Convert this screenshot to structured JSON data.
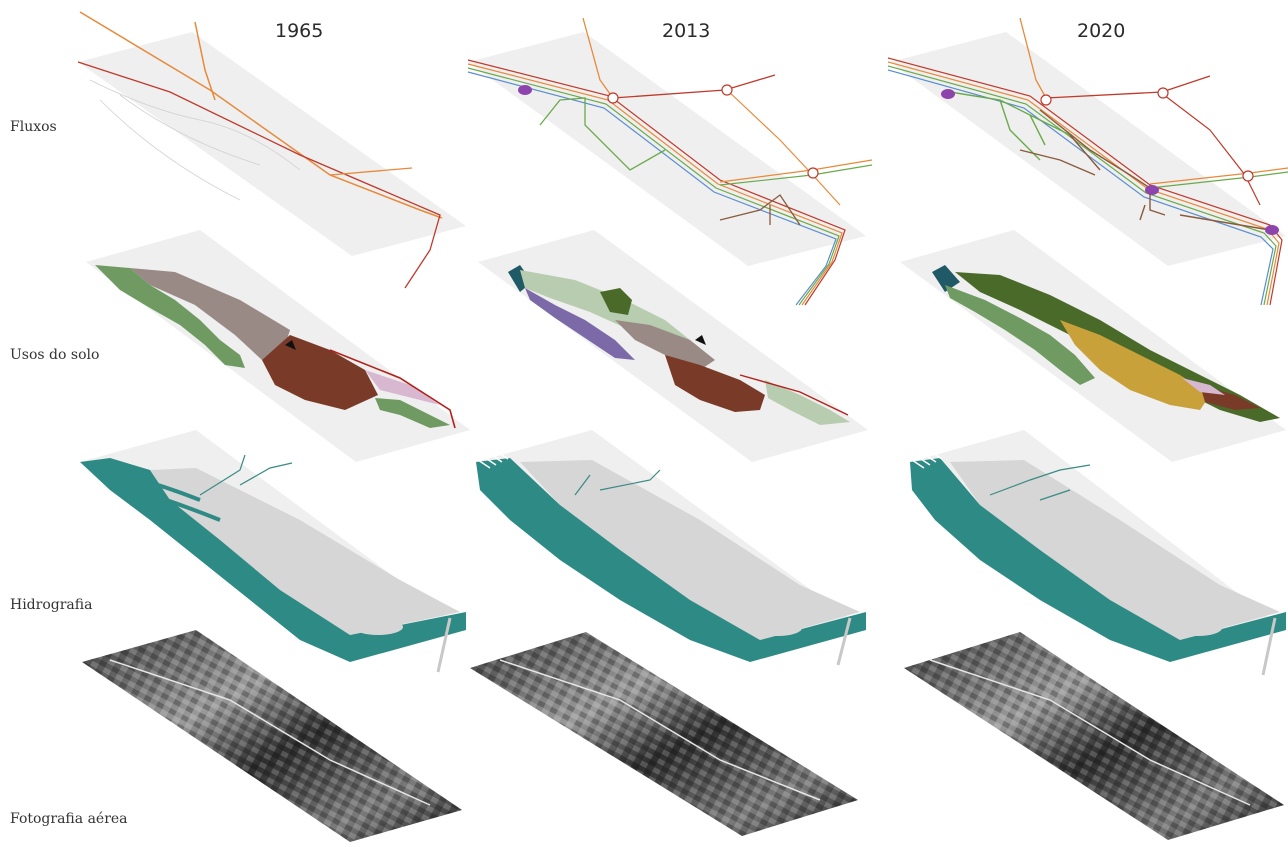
{
  "years": [
    "1965",
    "2013",
    "2020"
  ],
  "rows": [
    "Fluxos",
    "Usos do solo",
    "Hidrografia",
    "Fotografia aérea"
  ],
  "colors": {
    "plate": "#efefef",
    "water": "#2e8a84",
    "land": "#d6d6d6",
    "road_orange": "#e8893a",
    "road_red": "#c0392b",
    "green_line": "#6aaa4a",
    "brown_line": "#8b5a3c",
    "violet": "#8e44ad",
    "field_dark": "#7a3a28",
    "field_grey": "#9a8a86",
    "veg_green": "#6f9a62",
    "pale_green": "#b8ccb0",
    "forest": "#4a6a2a",
    "ochre": "#c9a13a",
    "teal_dark": "#1f5a66"
  }
}
